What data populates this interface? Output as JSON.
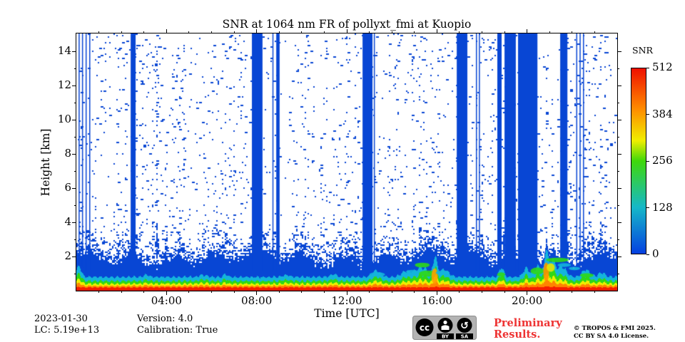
{
  "title": "SNR at 1064 nm FR of pollyxt_fmi at Kuopio",
  "axes": {
    "xlabel": "Time [UTC]",
    "ylabel": "Height [km]"
  },
  "footer": {
    "date": "2023-01-30",
    "lc": "LC: 5.19e+13",
    "version": "Version: 4.0",
    "calibration": "Calibration: True"
  },
  "license": {
    "cc_glyph": "cc",
    "by_label": "BY",
    "sa_label": "SA",
    "preliminary_line1": "Preliminary",
    "preliminary_line2": "Results.",
    "copyright_line1": "© TROPOS & FMI 2025.",
    "copyright_line2": "CC BY SA 4.0 License."
  },
  "colorbar": {
    "label": "SNR",
    "min": 0,
    "max": 512,
    "ticks": [
      512,
      384,
      256,
      128,
      0
    ],
    "gradient_stops_bottom_to_top": [
      "#0540e0",
      "#16b8c8",
      "#3fd80a",
      "#f0ee00",
      "#ff8c00",
      "#ee1000"
    ]
  },
  "chart_data": {
    "type": "heatmap",
    "title": "SNR at 1064 nm FR of pollyxt_fmi at Kuopio",
    "xlabel": "Time [UTC]",
    "ylabel": "Height [km]",
    "xlim_hours": [
      0,
      24
    ],
    "ylim_km": [
      0,
      15
    ],
    "grid": false,
    "x_ticks": [
      {
        "t": 4,
        "label": "04:00"
      },
      {
        "t": 8,
        "label": "08:00"
      },
      {
        "t": 12,
        "label": "12:00"
      },
      {
        "t": 16,
        "label": "16:00"
      },
      {
        "t": 20,
        "label": "20:00"
      }
    ],
    "x_minor_step_h": 1,
    "y_ticks": [
      2,
      4,
      6,
      8,
      10,
      12,
      14
    ],
    "y_minor_step_km": 1,
    "value_label": "SNR",
    "value_range": [
      0,
      512
    ],
    "description": "Lidar SNR quicklook: sparse blue noise speckle above ~2.5 km on white background, dense low-SNR blue below ~2 km, a strong near-surface aerosol layer (SNR up to 512, red) below ~0.3 km, full-column saturated blue bands during cloudy/blocked periods, and elevated green/orange plume features near 1-2 km around 15-16.5 UTC and 20-22 UTC.",
    "colors": {
      "blue": "#0846d4",
      "cyan": "#14b4dc",
      "green": "#2fd816",
      "yellow": "#eeee00",
      "orange": "#ff8400",
      "red": "#f51e00",
      "dark_red": "#c81600"
    },
    "cloud_bands_hours": [
      [
        2.41,
        2.63
      ],
      [
        7.79,
        8.26
      ],
      [
        8.87,
        9.02
      ],
      [
        12.7,
        13.14
      ],
      [
        16.88,
        17.35
      ],
      [
        18.68,
        18.87
      ],
      [
        19.0,
        19.5
      ],
      [
        19.6,
        20.46
      ],
      [
        21.47,
        21.79
      ]
    ],
    "thin_lines_hours": [
      0.1,
      0.25,
      0.41,
      0.57,
      8.7,
      13.2,
      17.73,
      17.86,
      22.18,
      22.33,
      22.48
    ],
    "noise": {
      "seed": 1234,
      "base_density": 0.028,
      "solid_top_km": 1.9,
      "transition_km": 1.4
    },
    "surface": {
      "red_top_km": 0.21,
      "orange_top_km": 0.3,
      "yellow_top_km": 0.42,
      "green_top_km": 0.58,
      "cyan_top_km": 0.82,
      "bumps": [
        {
          "t": 0.1,
          "a": 0.5,
          "w": 0.15
        },
        {
          "t": 3.1,
          "a": 0.12,
          "w": 0.15
        },
        {
          "t": 5.6,
          "a": 0.1,
          "w": 0.2
        },
        {
          "t": 6.6,
          "a": 0.14,
          "w": 0.12
        },
        {
          "t": 9.3,
          "a": 0.1,
          "w": 0.2
        },
        {
          "t": 11.4,
          "a": 0.12,
          "w": 0.2
        },
        {
          "t": 13.3,
          "a": 0.3,
          "w": 0.25
        },
        {
          "t": 14.6,
          "a": 0.25,
          "w": 0.3
        },
        {
          "t": 15.3,
          "a": 0.45,
          "w": 0.4
        },
        {
          "t": 15.9,
          "a": 0.9,
          "w": 0.12
        },
        {
          "t": 16.3,
          "a": 0.35,
          "w": 0.3
        },
        {
          "t": 18.85,
          "a": 0.45,
          "w": 0.15
        },
        {
          "t": 19.95,
          "a": 0.4,
          "w": 0.2
        },
        {
          "t": 20.5,
          "a": 0.5,
          "w": 0.25
        },
        {
          "t": 20.85,
          "a": 1.3,
          "w": 0.1
        },
        {
          "t": 21.1,
          "a": 0.8,
          "w": 0.15
        },
        {
          "t": 21.5,
          "a": 0.5,
          "w": 0.3
        },
        {
          "t": 22.6,
          "a": 0.35,
          "w": 0.25
        },
        {
          "t": 23.3,
          "a": 0.2,
          "w": 0.2
        }
      ]
    },
    "low_level_features": [
      {
        "t": 13.35,
        "h": 0.95,
        "rx": 0.35,
        "ry": 0.13,
        "c": "#14b4dc"
      },
      {
        "t": 14.9,
        "h": 1.1,
        "rx": 0.28,
        "ry": 0.12,
        "c": "#14b4dc"
      },
      {
        "t": 15.35,
        "h": 1.5,
        "rx": 0.33,
        "ry": 0.14,
        "c": "#2fd816"
      },
      {
        "t": 15.6,
        "h": 1.0,
        "rx": 0.4,
        "ry": 0.18,
        "c": "#2fd816"
      },
      {
        "t": 15.9,
        "h": 0.85,
        "rx": 0.14,
        "ry": 0.45,
        "c": "#ffa000"
      },
      {
        "t": 16.25,
        "h": 1.05,
        "rx": 0.3,
        "ry": 0.13,
        "c": "#14b4dc"
      },
      {
        "t": 18.85,
        "h": 0.95,
        "rx": 0.18,
        "ry": 0.12,
        "c": "#2fd816"
      },
      {
        "t": 20.45,
        "h": 1.15,
        "rx": 0.3,
        "ry": 0.2,
        "c": "#2fd816"
      },
      {
        "t": 20.85,
        "h": 1.1,
        "rx": 0.13,
        "ry": 0.55,
        "c": "#ff9000"
      },
      {
        "t": 21.05,
        "h": 1.35,
        "rx": 0.18,
        "ry": 0.25,
        "c": "#e8e800"
      },
      {
        "t": 21.35,
        "h": 1.8,
        "rx": 0.5,
        "ry": 0.13,
        "c": "#2fd816"
      },
      {
        "t": 21.65,
        "h": 1.5,
        "rx": 0.3,
        "ry": 0.11,
        "c": "#14b4dc"
      },
      {
        "t": 22.1,
        "h": 1.3,
        "rx": 0.25,
        "ry": 0.1,
        "c": "#14b4dc"
      },
      {
        "t": 22.65,
        "h": 0.9,
        "rx": 0.3,
        "ry": 0.12,
        "c": "#2fd816"
      }
    ]
  }
}
